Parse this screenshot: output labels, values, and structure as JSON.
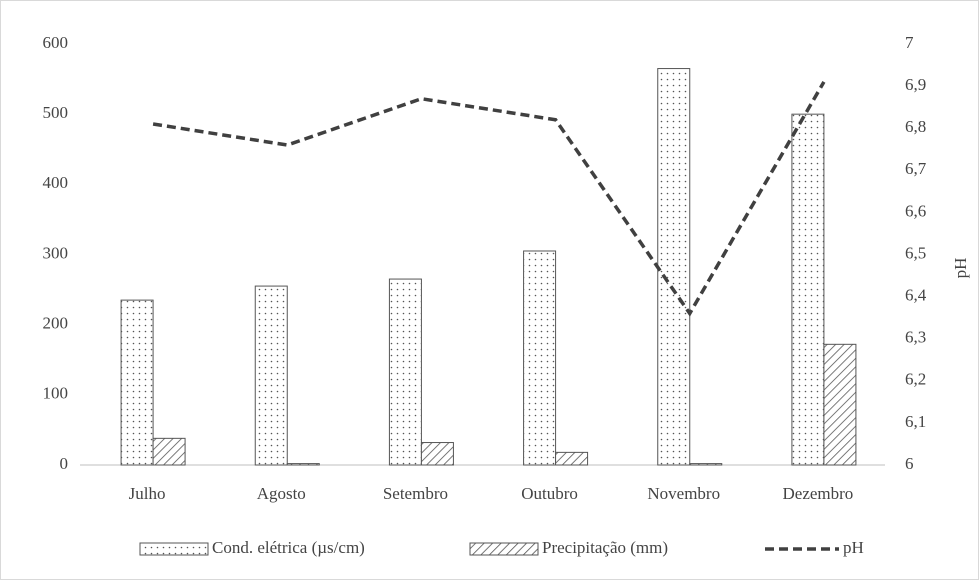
{
  "chart_data": {
    "type": "bar",
    "categories": [
      "Julho",
      "Agosto",
      "Setembro",
      "Outubro",
      "Novembro",
      "Dezembro"
    ],
    "series": [
      {
        "name": "Cond. elétrica (µs/cm)",
        "type": "bar",
        "pattern": "dots",
        "color": "#555555",
        "values": [
          235,
          255,
          265,
          305,
          565,
          500
        ]
      },
      {
        "name": "Precipitação (mm)",
        "type": "bar",
        "pattern": "hatch",
        "color": "#555555",
        "values": [
          38,
          2,
          32,
          18,
          2,
          172
        ]
      },
      {
        "name": "pH",
        "type": "line",
        "dashed": true,
        "color": "#404040",
        "axis": "y2",
        "values": [
          6.81,
          6.76,
          6.87,
          6.82,
          6.36,
          6.91
        ]
      }
    ],
    "ylim": [
      0,
      600
    ],
    "yticks": [
      0,
      100,
      200,
      300,
      400,
      500,
      600
    ],
    "y2lim": [
      6,
      7
    ],
    "y2ticks": [
      6,
      {
        "value": 6.1,
        "label": "6,1"
      },
      {
        "value": 6.2,
        "label": "6,2"
      },
      {
        "value": 6.3,
        "label": "6,3"
      },
      {
        "value": 6.4,
        "label": "6,4"
      },
      {
        "value": 6.5,
        "label": "6,5"
      },
      {
        "value": 6.6,
        "label": "6,6"
      },
      {
        "value": 6.7,
        "label": "6,7"
      },
      {
        "value": 6.8,
        "label": "6,8"
      },
      {
        "value": 6.9,
        "label": "6,9"
      },
      7
    ],
    "y2label": "pH",
    "grid": false,
    "legend": "bottom"
  }
}
